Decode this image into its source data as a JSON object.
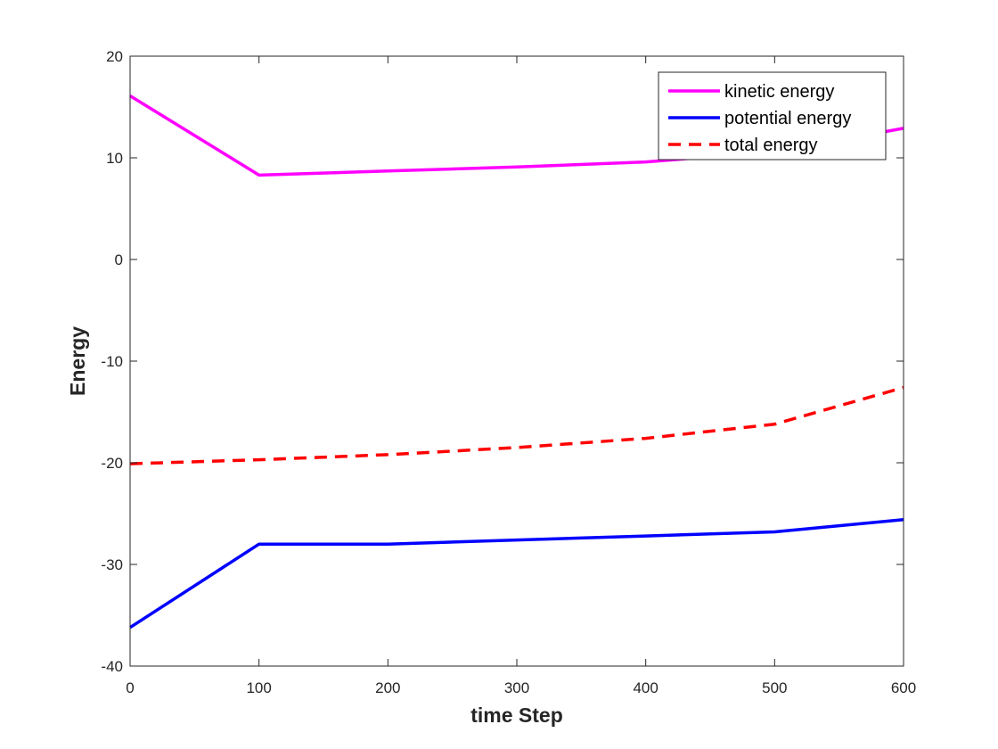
{
  "chart_data": {
    "type": "line",
    "title": "",
    "xlabel": "time Step",
    "ylabel": "Energy",
    "xlim": [
      0,
      600
    ],
    "ylim": [
      -40,
      20
    ],
    "xticks": [
      0,
      100,
      200,
      300,
      400,
      500,
      600
    ],
    "yticks": [
      -40,
      -30,
      -20,
      -10,
      0,
      10,
      20
    ],
    "grid": false,
    "legend_position": "top-right",
    "x": [
      0,
      100,
      200,
      300,
      400,
      500,
      600
    ],
    "series": [
      {
        "name": "kinetic energy",
        "color": "#ff00ff",
        "style": "solid",
        "values": [
          16.1,
          8.3,
          8.7,
          9.1,
          9.6,
          10.6,
          12.9
        ]
      },
      {
        "name": "potential energy",
        "color": "#0000ff",
        "style": "solid",
        "values": [
          -36.2,
          -28.0,
          -28.0,
          -27.6,
          -27.2,
          -26.8,
          -25.6
        ]
      },
      {
        "name": "total energy",
        "color": "#ff0000",
        "style": "dashed",
        "values": [
          -20.1,
          -19.7,
          -19.2,
          -18.5,
          -17.6,
          -16.2,
          -12.6
        ]
      }
    ]
  }
}
